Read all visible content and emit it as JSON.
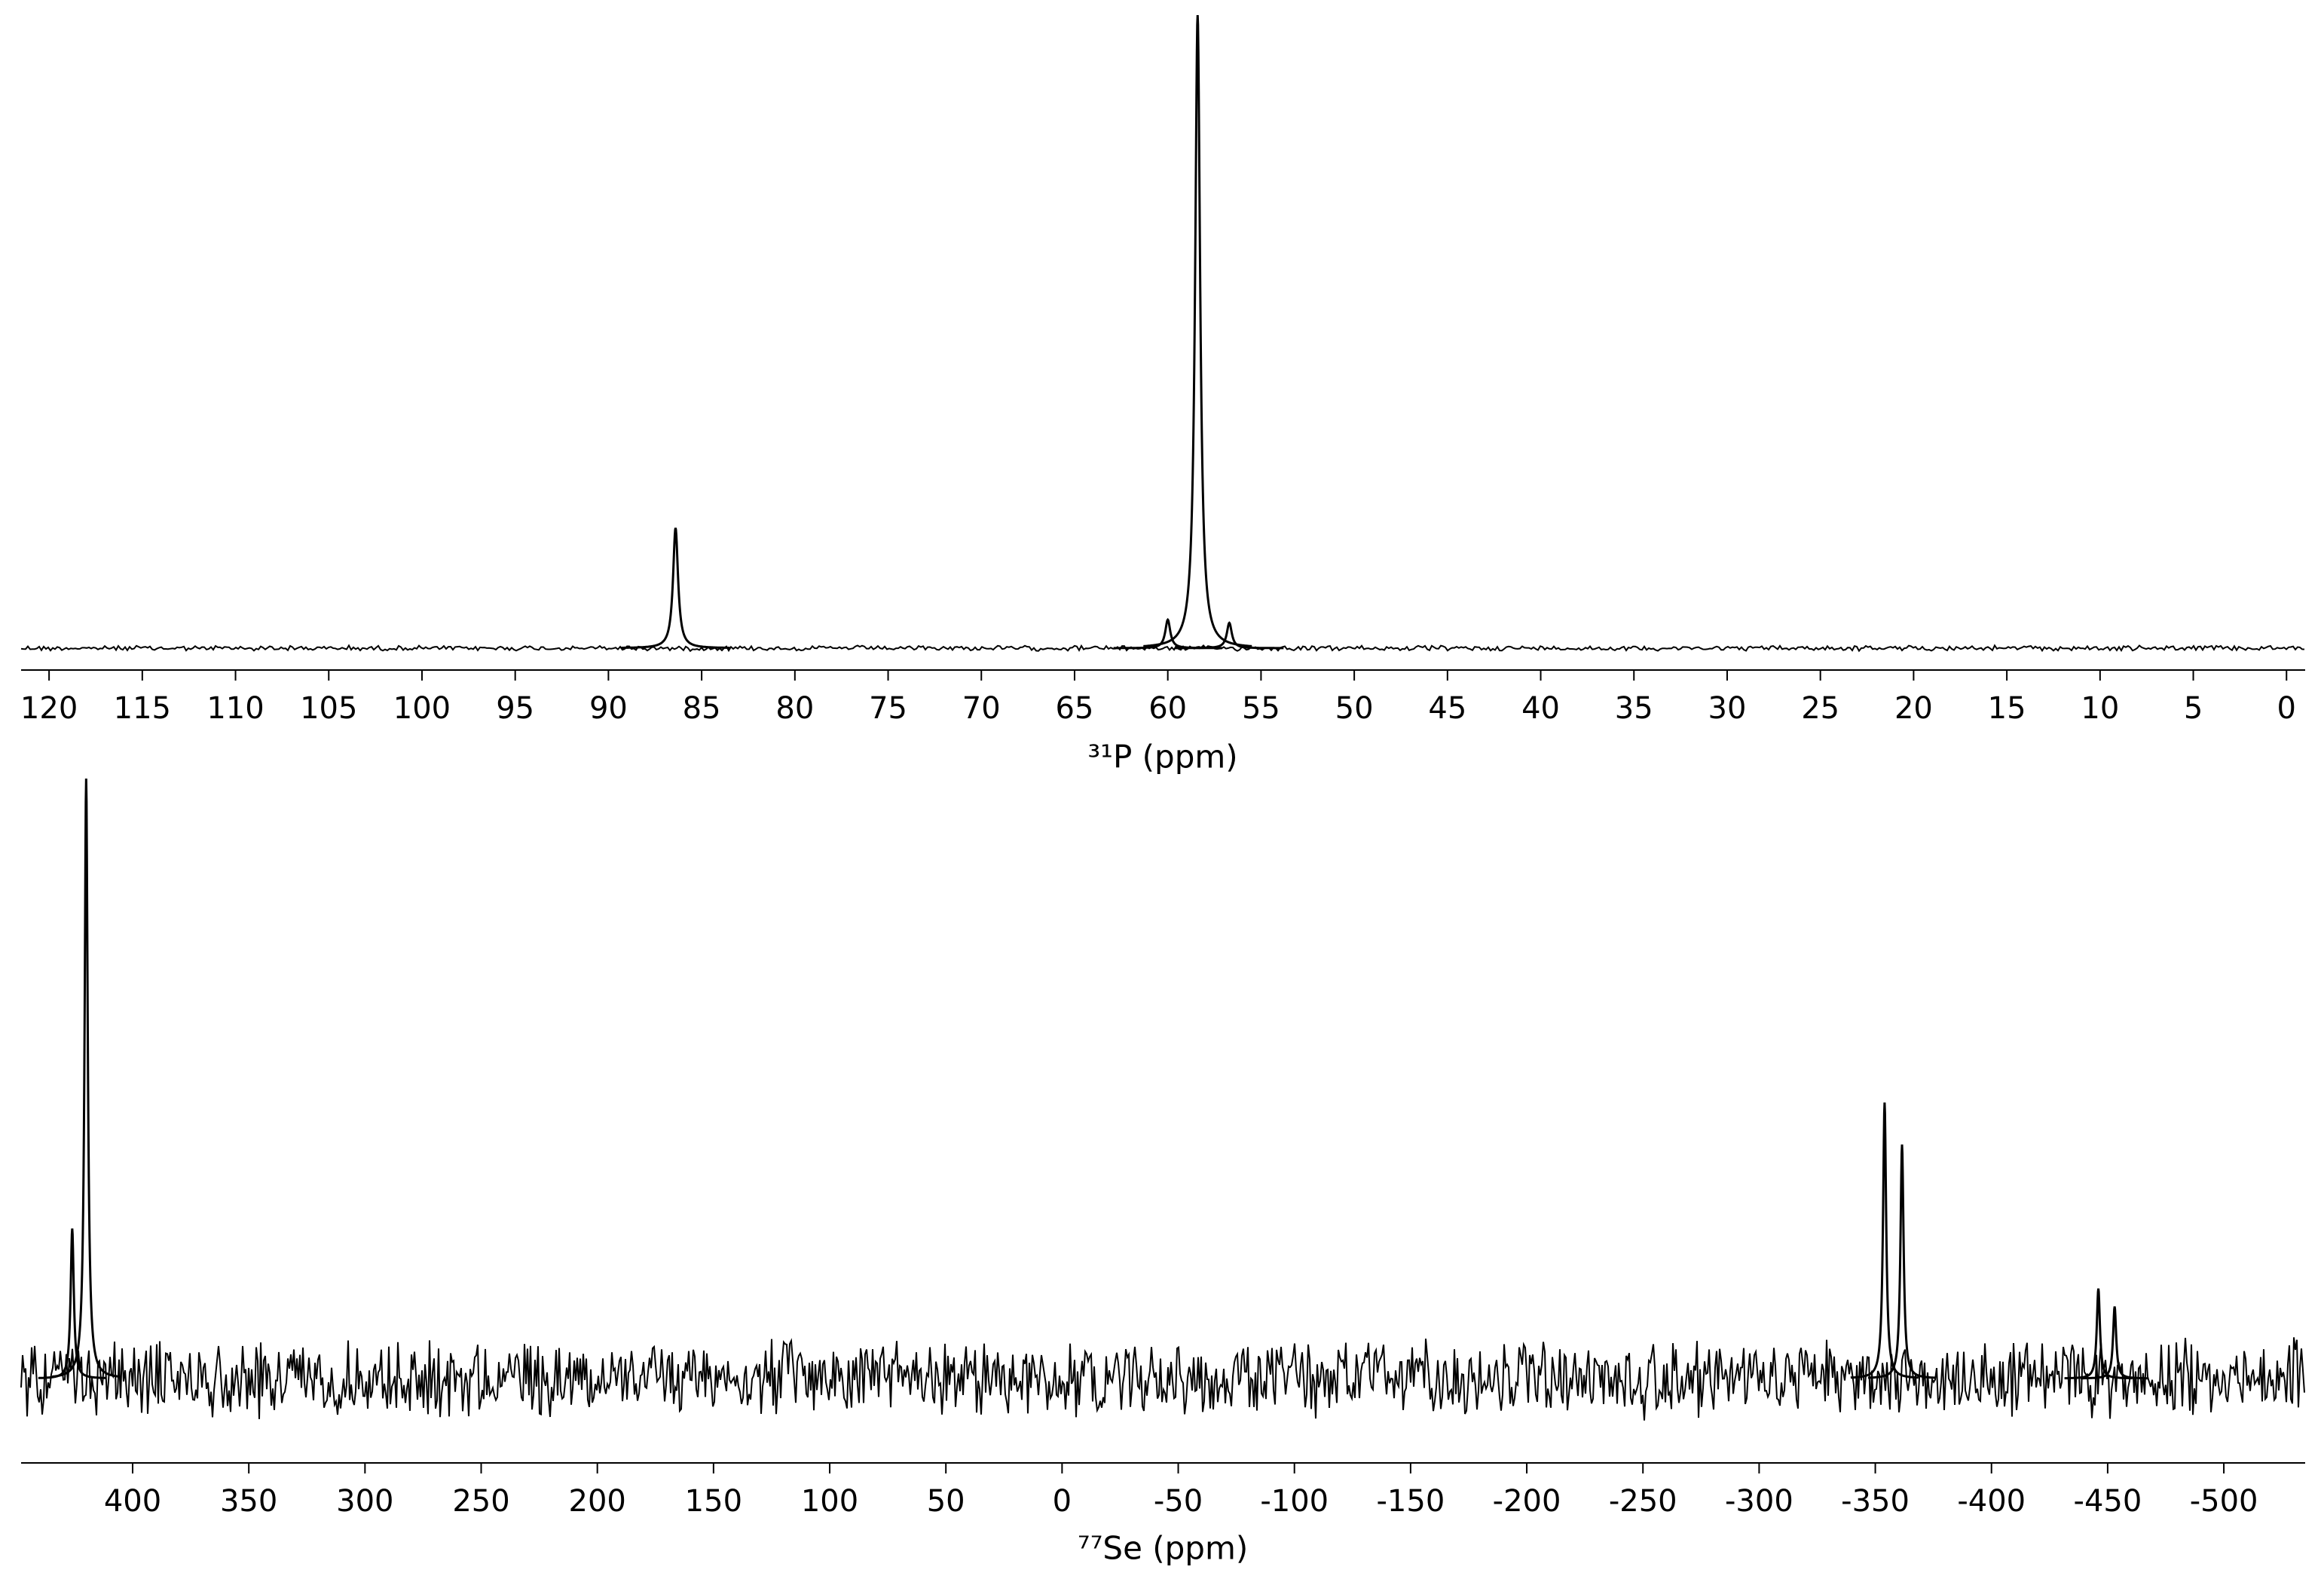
{
  "chart_data": [
    {
      "type": "spectrum",
      "xlabel": "³¹P (ppm)",
      "color": "#000000",
      "xlim": [
        121.5,
        -1
      ],
      "xticks": [
        120,
        115,
        110,
        105,
        100,
        95,
        90,
        85,
        80,
        75,
        70,
        65,
        60,
        55,
        50,
        45,
        40,
        35,
        30,
        25,
        20,
        15,
        10,
        5,
        0
      ],
      "ylim": [
        0,
        100
      ],
      "x": [
        86.4,
        60.0,
        58.4,
        56.7
      ],
      "values": [
        19,
        4.5,
        100,
        4
      ]
    },
    {
      "type": "spectrum",
      "xlabel": "⁷⁷Se (ppm)",
      "color": "#000000",
      "xlim": [
        448,
        -535
      ],
      "xticks": [
        400,
        350,
        300,
        250,
        200,
        150,
        100,
        50,
        0,
        -50,
        -100,
        -150,
        -200,
        -250,
        -300,
        -350,
        -400,
        -450,
        -500
      ],
      "ylim": [
        0,
        100
      ],
      "x": [
        426,
        420,
        -354,
        -361.5,
        -446,
        -453
      ],
      "values": [
        25,
        100,
        46,
        39,
        15,
        12
      ]
    }
  ]
}
